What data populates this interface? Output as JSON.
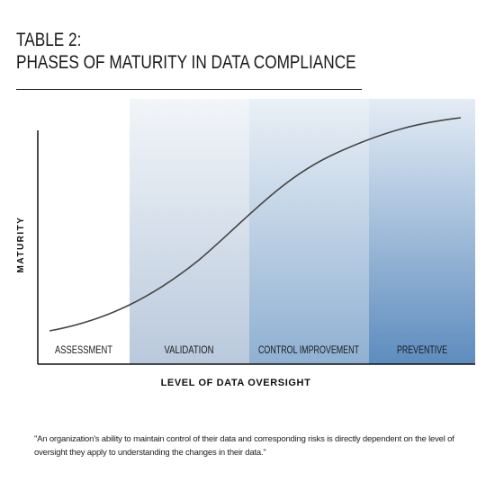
{
  "title": {
    "line1": "TABLE 2:",
    "line2": "PHASES OF MATURITY IN DATA COMPLIANCE"
  },
  "axes": {
    "ylabel": "MATURITY",
    "xlabel": "LEVEL OF DATA OVERSIGHT"
  },
  "phases": [
    {
      "label": "ASSESSMENT",
      "shade": 0
    },
    {
      "label": "VALIDATION",
      "shade": 1
    },
    {
      "label": "CONTROL IMPROVEMENT",
      "shade": 2
    },
    {
      "label": "PREVENTIVE",
      "shade": 3
    }
  ],
  "colors": {
    "phase_top": [
      "#ffffff",
      "#f2f5f9",
      "#eaf0f6",
      "#e4ecf5"
    ],
    "phase_bottom": [
      "#ffffff",
      "#b9c9dc",
      "#8fb0d2",
      "#5d8cbe"
    ],
    "curve": "#444444",
    "axis": "#111111"
  },
  "footnote": "\"An organization's ability to maintain control of their data and corresponding risks is directly dependent on the level of oversight they apply to understanding the changes in their data.\""
}
